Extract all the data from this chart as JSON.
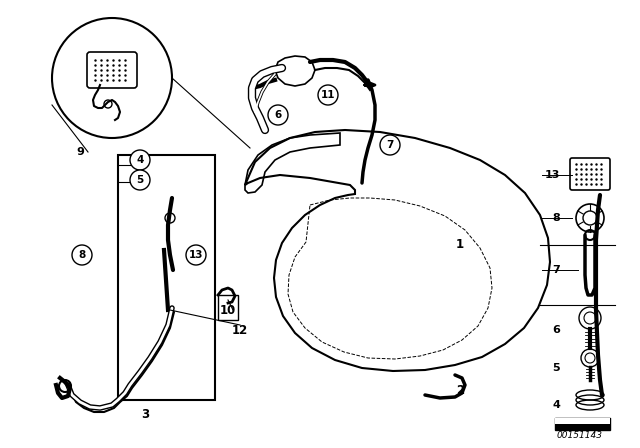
{
  "background_color": "#ffffff",
  "image_id": "00151143",
  "fig_w": 6.4,
  "fig_h": 4.48,
  "dpi": 100
}
